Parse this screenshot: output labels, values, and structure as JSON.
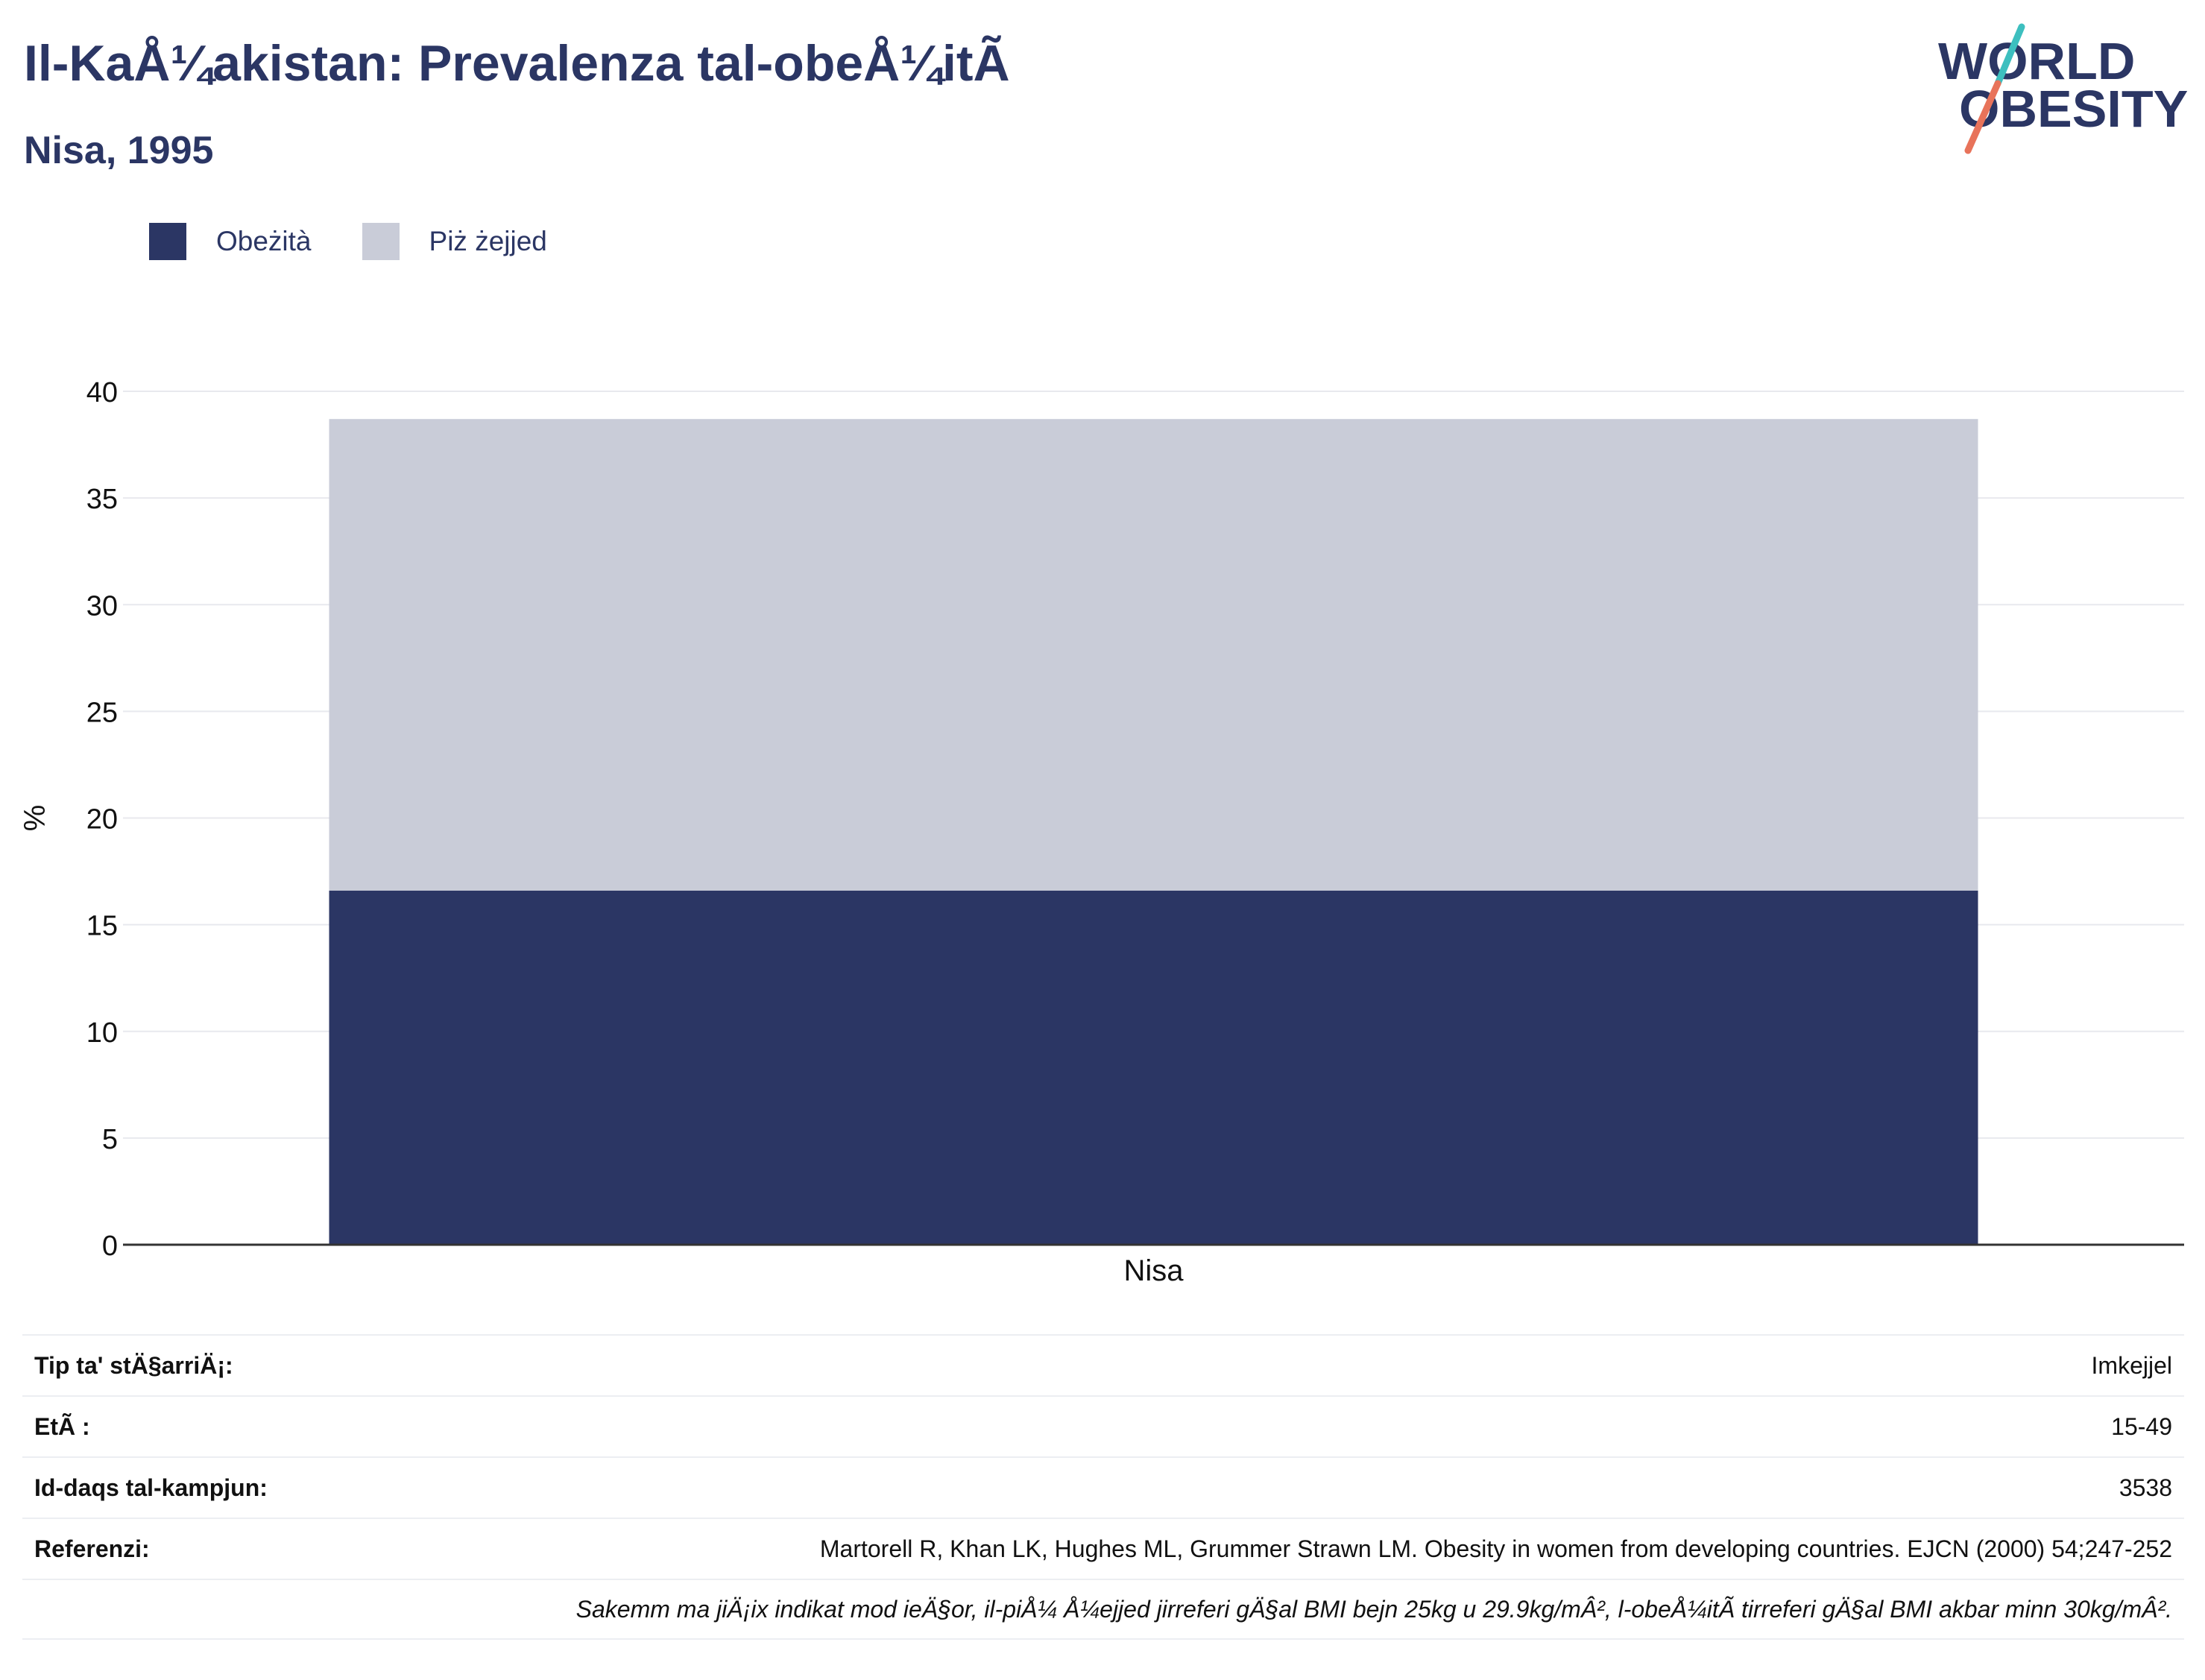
{
  "header": {
    "title": "Il-KaÅ¼akistan: Prevalenza tal-obeÅ¼itÃ",
    "subtitle": "Nisa, 1995"
  },
  "logo": {
    "line1": "WORLD",
    "line2": "OBESITY",
    "text_color": "#2b3664",
    "slash_colors": [
      "#3dbfbf",
      "#e8735a"
    ]
  },
  "legend": {
    "items": [
      {
        "label": "Obeżità",
        "color": "#2b3664"
      },
      {
        "label": "Piż żejjed",
        "color": "#c9ccd8"
      }
    ]
  },
  "chart_data": {
    "type": "bar",
    "stacked": true,
    "categories": [
      "Nisa"
    ],
    "series": [
      {
        "name": "Obeżità",
        "values": [
          16.6
        ],
        "color": "#2b3664"
      },
      {
        "name": "Piż żejjed",
        "values": [
          22.1
        ],
        "color": "#c9ccd8"
      }
    ],
    "ylabel": "%",
    "ylim": [
      0,
      40
    ],
    "yticks": [
      0,
      5,
      10,
      15,
      20,
      25,
      30,
      35,
      40
    ],
    "grid": true,
    "legend_position": "top-left"
  },
  "info": {
    "rows": [
      {
        "label": "Tip ta' stÄ§arriÄ¡:",
        "value": "Imkejjel"
      },
      {
        "label": "EtÃ :",
        "value": "15-49"
      },
      {
        "label": "Id-daqs tal-kampjun:",
        "value": "3538"
      },
      {
        "label": "Referenzi:",
        "value": "Martorell R, Khan LK, Hughes ML, Grummer Strawn LM. Obesity in women from developing countries. EJCN (2000) 54;247-252"
      }
    ],
    "note": "Sakemm ma jiÄ¡ix indikat mod ieÄ§or, il-piÅ¼ Å¼ejjed jirreferi gÄ§al BMI bejn 25kg u 29.9kg/mÂ², l-obeÅ¼itÃ  tirreferi gÄ§al BMI akbar minn 30kg/mÂ²."
  }
}
